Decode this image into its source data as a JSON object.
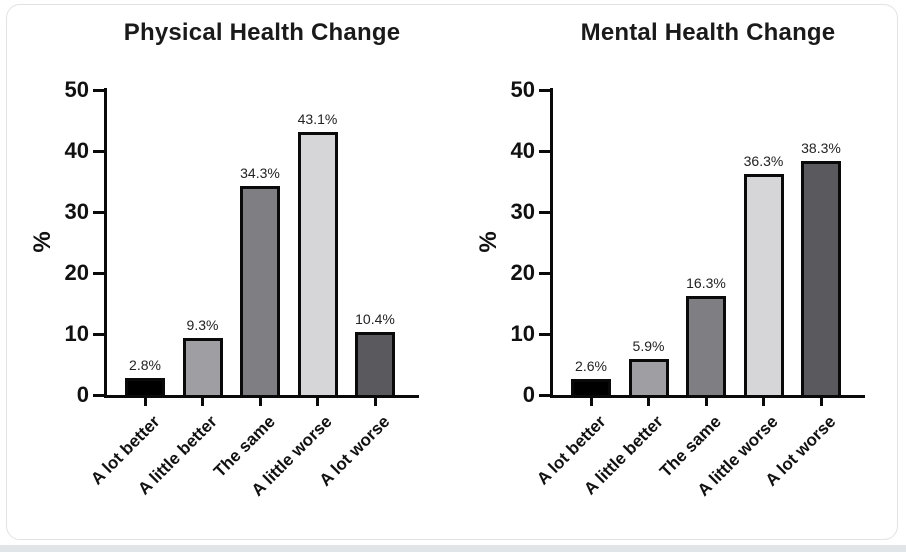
{
  "page": {
    "card_border_color": "#e2e2e2",
    "bottom_strip_color": "#e2e5e8"
  },
  "chart_data": [
    {
      "type": "bar",
      "title": "Physical Health Change",
      "xlabel": "",
      "ylabel": "%",
      "ylim": [
        0,
        50
      ],
      "yticks": [
        0,
        10,
        20,
        30,
        40,
        50
      ],
      "grid": false,
      "legend_position": "none",
      "categories": [
        "A lot better",
        "A little better",
        "The same",
        "A little worse",
        "A lot worse"
      ],
      "values": [
        2.8,
        9.3,
        34.3,
        43.1,
        10.4
      ],
      "value_labels": [
        "2.8%",
        "9.3%",
        "34.3%",
        "43.1%",
        "10.4%"
      ],
      "bar_colors": [
        "#000000",
        "#9e9ea3",
        "#7f7f83",
        "#d6d6d8",
        "#5a5a5e"
      ]
    },
    {
      "type": "bar",
      "title": "Mental Health Change",
      "xlabel": "",
      "ylabel": "%",
      "ylim": [
        0,
        50
      ],
      "yticks": [
        0,
        10,
        20,
        30,
        40,
        50
      ],
      "grid": false,
      "legend_position": "none",
      "categories": [
        "A lot better",
        "A little better",
        "The same",
        "A little worse",
        "A lot worse"
      ],
      "values": [
        2.6,
        5.9,
        16.3,
        36.3,
        38.3
      ],
      "value_labels": [
        "2.6%",
        "5.9%",
        "16.3%",
        "36.3%",
        "38.3%"
      ],
      "bar_colors": [
        "#000000",
        "#9e9ea3",
        "#7f7f83",
        "#d6d6d8",
        "#5a5a5e"
      ]
    }
  ]
}
